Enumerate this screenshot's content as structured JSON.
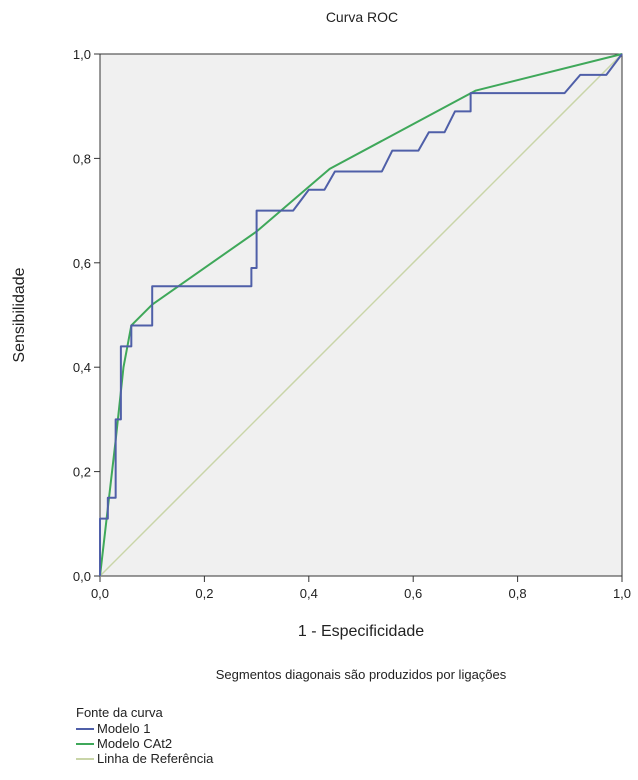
{
  "chart_data": {
    "type": "line",
    "title": "Curva ROC",
    "xlabel": "1 - Especificidade",
    "ylabel": "Sensibilidade",
    "note": "Segmentos diagonais são produzidos por ligações",
    "xlim": [
      0,
      1
    ],
    "ylim": [
      0,
      1
    ],
    "x_ticks": [
      "0,0",
      "0,2",
      "0,4",
      "0,6",
      "0,8",
      "1,0"
    ],
    "y_ticks": [
      "0,0",
      "0,2",
      "0,4",
      "0,6",
      "0,8",
      "1,0"
    ],
    "grid": false,
    "legend": {
      "title": "Fonte da curva",
      "placement": "bottom-left"
    },
    "series": [
      {
        "name": "Modelo 1",
        "color": "#4f5fa8",
        "x": [
          0.0,
          0.0,
          0.015,
          0.015,
          0.03,
          0.03,
          0.04,
          0.04,
          0.05,
          0.05,
          0.06,
          0.06,
          0.065,
          0.065,
          0.1,
          0.1,
          0.29,
          0.29,
          0.3,
          0.3,
          0.37,
          0.4,
          0.4,
          0.43,
          0.45,
          0.54,
          0.56,
          0.61,
          0.63,
          0.66,
          0.68,
          0.71,
          0.71,
          0.89,
          0.92,
          0.97,
          1.0
        ],
        "y": [
          0.0,
          0.11,
          0.11,
          0.15,
          0.15,
          0.3,
          0.3,
          0.44,
          0.44,
          0.44,
          0.44,
          0.48,
          0.48,
          0.48,
          0.48,
          0.555,
          0.555,
          0.59,
          0.59,
          0.7,
          0.7,
          0.74,
          0.74,
          0.74,
          0.775,
          0.775,
          0.815,
          0.815,
          0.85,
          0.85,
          0.89,
          0.89,
          0.925,
          0.925,
          0.96,
          0.96,
          1.0
        ]
      },
      {
        "name": "Modelo CAt2",
        "color": "#3fa85a",
        "x": [
          0.0,
          0.015,
          0.03,
          0.045,
          0.06,
          0.1,
          0.3,
          0.44,
          0.72,
          1.0
        ],
        "y": [
          0.0,
          0.13,
          0.26,
          0.4,
          0.48,
          0.52,
          0.66,
          0.78,
          0.93,
          1.0
        ]
      },
      {
        "name": "Linha de Referência",
        "color": "#c9d5a8",
        "x": [
          0.0,
          1.0
        ],
        "y": [
          0.0,
          1.0
        ]
      }
    ]
  }
}
